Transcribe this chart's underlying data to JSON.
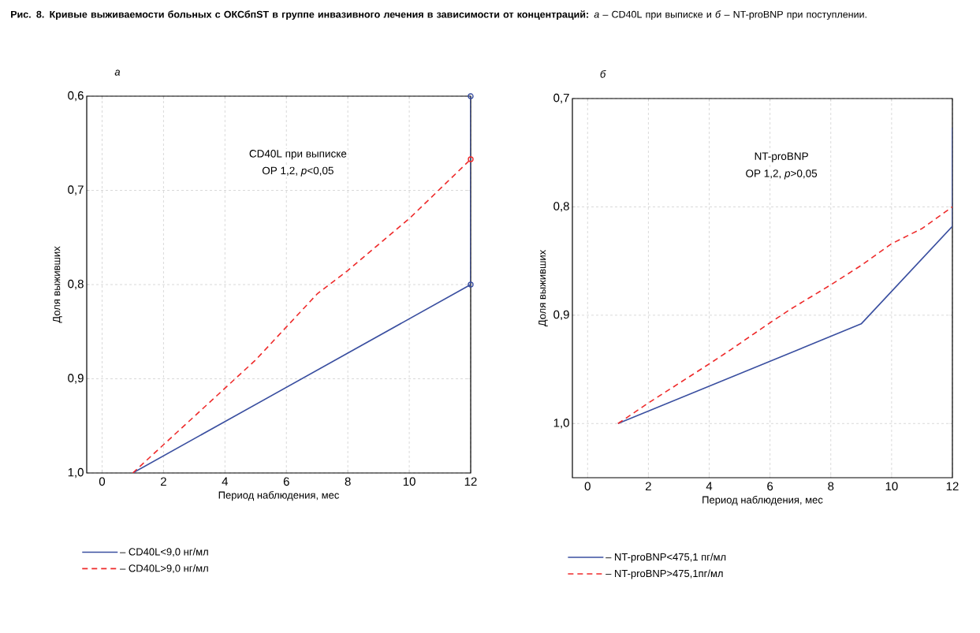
{
  "chart_data": [
    {
      "type": "line",
      "title": "**Рис. 8. Кривые выживаемости больных с ОКСбпST в группе инвазивного лечения в зависимости от концентраций:** *а* – CD40L при выписке и *б* – NT-proBNP при поступлении.",
      "subtitle": "а",
      "xlabel": "Период наблюдения, мес",
      "ylabel": "Доля выживших",
      "annotations": [
        "CD40L при выписке",
        "ОР 1,2, *p*<0,05"
      ],
      "xlim": [
        -0.5,
        12
      ],
      "ylim": [
        1.0,
        0.6
      ],
      "xticks": [
        0,
        2,
        4,
        6,
        8,
        10,
        12
      ],
      "yticks": [
        {
          "value": 0.6,
          "label": "0,6"
        },
        {
          "value": 0.7,
          "label": "0,7"
        },
        {
          "value": 0.8,
          "label": "0,8"
        },
        {
          "value": 0.9,
          "label": "0,9"
        },
        {
          "value": 1.0,
          "label": "1,0"
        }
      ],
      "grid": true,
      "legend": "bottom left",
      "series": [
        {
          "name": "– CD40L<9,0 нг/мл",
          "color": "#3a4fa0",
          "line_style": "solid",
          "x": [
            1,
            12,
            12
          ],
          "values": [
            1.0,
            0.8,
            0.6
          ]
        },
        {
          "name": "– CD40L>9,0 нг/мл",
          "color": "#ee2a2a",
          "line_style": "dashed",
          "x": [
            1,
            3,
            5,
            7,
            8,
            10,
            12
          ],
          "values": [
            1.0,
            0.94,
            0.88,
            0.81,
            0.785,
            0.73,
            0.667
          ]
        },
        {
          "type": "scatter",
          "marker": "circle",
          "color": "#3a4fa0",
          "x": [
            12,
            12
          ],
          "values": [
            0.6,
            0.8
          ]
        },
        {
          "type": "scatter",
          "marker": "circle",
          "color": "#ee2a2a",
          "x": [
            12
          ],
          "values": [
            0.667
          ]
        }
      ]
    },
    {
      "type": "line",
      "subtitle": "б",
      "xlabel": "Период наблюдения, мес",
      "ylabel": "Доля выживших",
      "annotations": [
        "NT-proBNP",
        "ОР 1,2, *p*>0,05"
      ],
      "xlim": [
        -0.5,
        12
      ],
      "ylim": [
        1.05,
        0.7
      ],
      "xticks": [
        0,
        2,
        4,
        6,
        8,
        10,
        12
      ],
      "yticks": [
        {
          "value": 0.7,
          "label": "0,7"
        },
        {
          "value": 0.8,
          "label": "0,8"
        },
        {
          "value": 0.9,
          "label": "0,9"
        },
        {
          "value": 1.0,
          "label": "1,0"
        }
      ],
      "grid": true,
      "legend": "bottom left",
      "series": [
        {
          "name": "– NT-proBNP<475,1 пг/мл",
          "color": "#3a4fa0",
          "line_style": "solid",
          "x": [
            1,
            9,
            12,
            12
          ],
          "values": [
            1.0,
            0.908,
            0.818,
            0.727
          ]
        },
        {
          "name": "– NT-proBNP>475,1пг/мл",
          "color": "#ee2a2a",
          "line_style": "dashed",
          "x": [
            1,
            2,
            4,
            4.7,
            6,
            6.7,
            8,
            9,
            10,
            11,
            12
          ],
          "values": [
            1.0,
            0.981,
            0.945,
            0.932,
            0.907,
            0.894,
            0.872,
            0.854,
            0.834,
            0.82,
            0.8
          ]
        }
      ]
    }
  ]
}
